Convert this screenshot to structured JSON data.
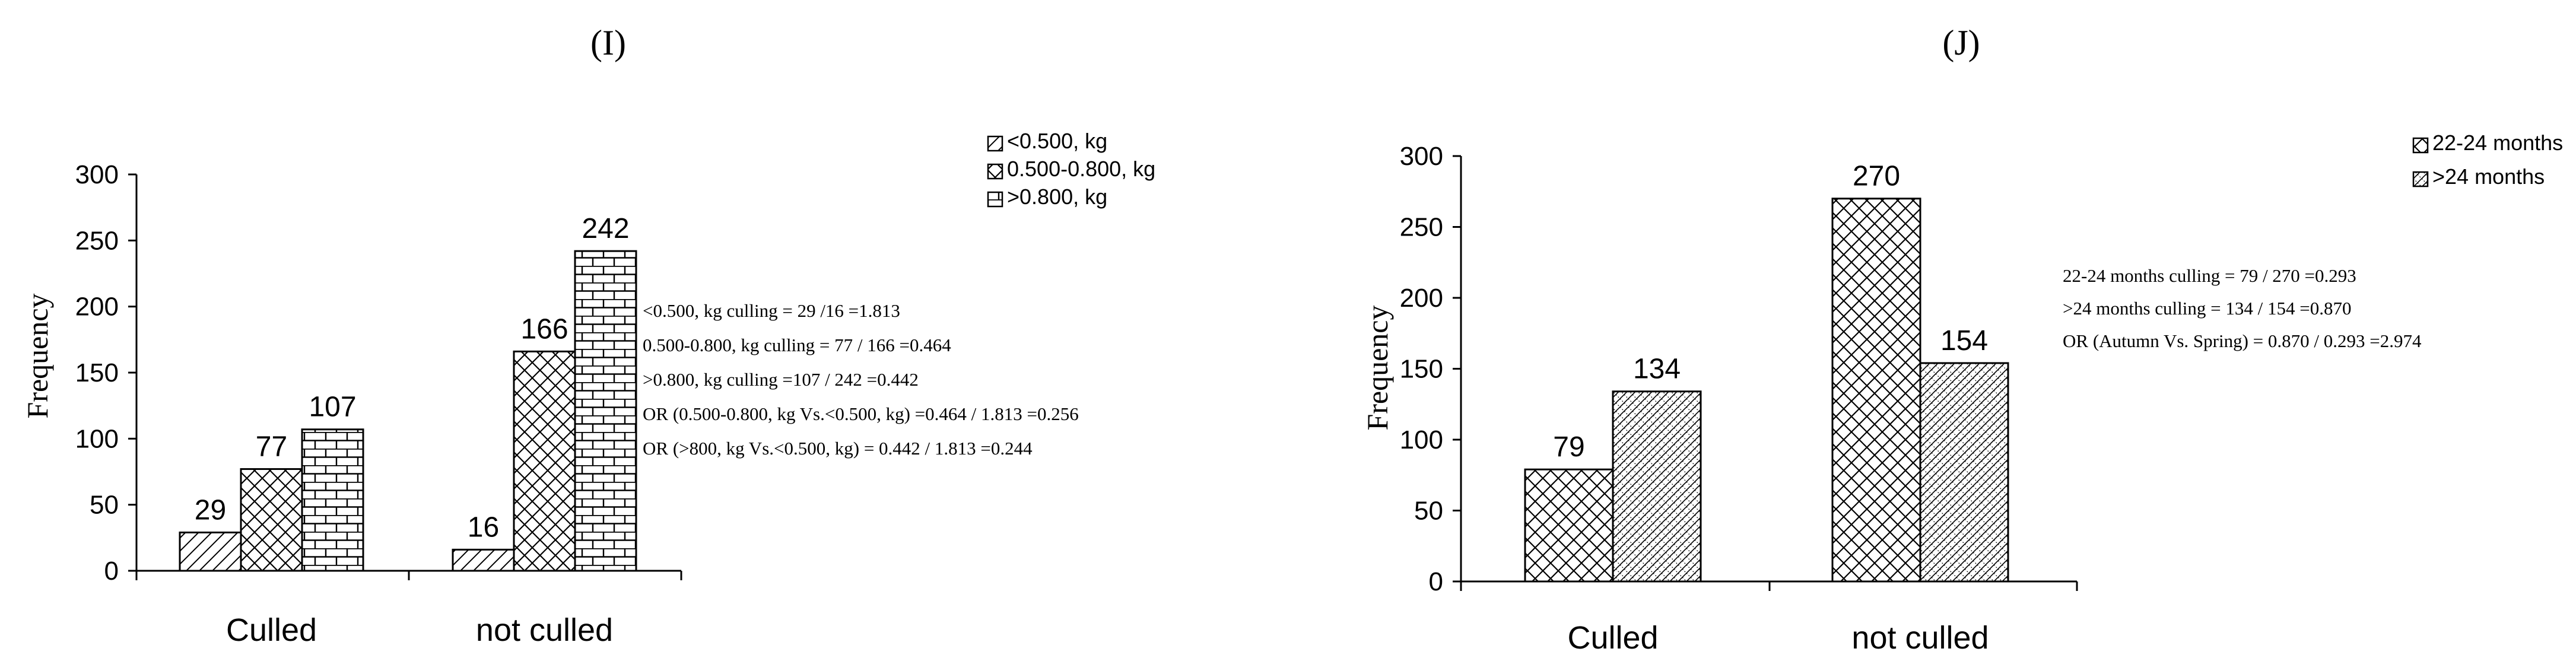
{
  "chart_data": [
    {
      "type": "bar",
      "title": "(I)",
      "ylabel": "Frequency",
      "xlabel": "",
      "ylim": [
        0,
        300
      ],
      "yticks": [
        0,
        50,
        100,
        150,
        200,
        250,
        300
      ],
      "categories": [
        "Culled",
        "not culled"
      ],
      "series": [
        {
          "name": "<0.500, kg",
          "values": [
            29,
            16
          ],
          "pattern": "diag"
        },
        {
          "name": "0.500-0.800, kg",
          "values": [
            77,
            166
          ],
          "pattern": "cross"
        },
        {
          "name": ">0.800, kg",
          "values": [
            107,
            242
          ],
          "pattern": "brick"
        }
      ],
      "legend_position": "top-right",
      "grid": false,
      "annotations": [
        "<0.500, kg culling = 29 /16 =1.813",
        "0.500-0.800, kg  culling = 77 / 166 =0.464",
        ">0.800, kg  culling =107 / 242 =0.442",
        "OR (0.500-0.800, kg Vs.<0.500, kg) =0.464 / 1.813  =0.256",
        "OR (>800, kg Vs.<0.500, kg) = 0.442 / 1.813  =0.244"
      ]
    },
    {
      "type": "bar",
      "title": "(J)",
      "ylabel": "Frequency",
      "xlabel": "",
      "ylim": [
        0,
        300
      ],
      "yticks": [
        0,
        50,
        100,
        150,
        200,
        250,
        300
      ],
      "categories": [
        "Culled",
        "not culled"
      ],
      "series": [
        {
          "name": "22-24 months",
          "values": [
            79,
            270
          ],
          "pattern": "cross"
        },
        {
          "name": ">24 months",
          "values": [
            134,
            154
          ],
          "pattern": "dots"
        }
      ],
      "legend_position": "top-right",
      "grid": false,
      "annotations": [
        "22-24 months culling = 79 / 270 =0.293",
        ">24 months culling = 134 / 154 =0.870",
        "OR (Autumn  Vs. Spring) = 0.870 / 0.293  =2.974"
      ]
    }
  ]
}
